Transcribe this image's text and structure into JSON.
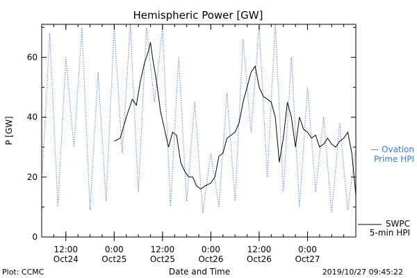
{
  "chart_data": {
    "type": "line",
    "title": "Hemispheric Power [GW]",
    "xlabel": "Date and Time",
    "ylabel": "P [GW]",
    "y_ticks": [
      0,
      20,
      40,
      60
    ],
    "ylim": [
      0,
      71
    ],
    "x_ticks": [
      {
        "time": "12:00",
        "date": "Oct24"
      },
      {
        "time": "0:00",
        "date": "Oct25"
      },
      {
        "time": "12:00",
        "date": "Oct25"
      },
      {
        "time": "0:00",
        "date": "Oct26"
      },
      {
        "time": "12:00",
        "date": "Oct26"
      },
      {
        "time": "0:00",
        "date": "Oct27"
      }
    ],
    "xlim": [
      "2019-10-24T06:00",
      "2019-10-27T12:00"
    ],
    "grid": false,
    "legend_placement": "right",
    "series": [
      {
        "name": "Ovation Prime HPI",
        "legend_lines": [
          "— Ovation",
          "Prime HPI"
        ],
        "color": "#3a7bd5",
        "style": "dotted",
        "x": [
          "2019-10-24T06:00",
          "2019-10-24T08:00",
          "2019-10-24T10:00",
          "2019-10-24T12:00",
          "2019-10-24T14:00",
          "2019-10-24T16:00",
          "2019-10-24T18:00",
          "2019-10-24T20:00",
          "2019-10-24T22:00",
          "2019-10-25T00:00",
          "2019-10-25T02:00",
          "2019-10-25T04:00",
          "2019-10-25T06:00",
          "2019-10-25T08:00",
          "2019-10-25T10:00",
          "2019-10-25T12:00",
          "2019-10-25T14:00",
          "2019-10-25T16:00",
          "2019-10-25T18:00",
          "2019-10-25T20:00",
          "2019-10-25T22:00",
          "2019-10-26T00:00",
          "2019-10-26T02:00",
          "2019-10-26T04:00",
          "2019-10-26T06:00",
          "2019-10-26T08:00",
          "2019-10-26T10:00",
          "2019-10-26T12:00",
          "2019-10-26T14:00",
          "2019-10-26T16:00",
          "2019-10-26T18:00",
          "2019-10-26T20:00",
          "2019-10-26T22:00",
          "2019-10-27T00:00",
          "2019-10-27T02:00",
          "2019-10-27T04:00",
          "2019-10-27T06:00",
          "2019-10-27T08:00",
          "2019-10-27T10:00",
          "2019-10-27T12:00"
        ],
        "values": [
          18,
          68,
          10,
          60,
          30,
          70,
          9,
          55,
          12,
          70,
          28,
          71,
          15,
          70,
          45,
          70,
          10,
          60,
          12,
          45,
          8,
          28,
          10,
          48,
          12,
          66,
          35,
          71,
          20,
          71,
          15,
          60,
          10,
          50,
          15,
          40,
          8,
          38,
          9,
          30
        ]
      },
      {
        "name": "SWPC 5-min HPI",
        "legend_lines": [
          "SWPC",
          "5-min HPI"
        ],
        "color": "#000000",
        "style": "solid",
        "x": [
          "2019-10-24T06:00",
          "2019-10-24T12:00",
          "2019-10-24T18:00",
          "2019-10-25T00:00",
          "2019-10-25T06:00",
          "2019-10-25T12:00",
          "2019-10-25T18:00",
          "2019-10-26T00:00",
          "2019-10-26T06:00",
          "2019-10-26T12:00",
          "2019-10-26T18:00",
          "2019-10-27T00:00",
          "2019-10-27T06:00",
          "2019-10-27T12:00"
        ],
        "values": [
          0,
          0,
          0,
          0,
          0,
          0,
          0,
          0,
          0,
          0,
          0,
          0,
          0,
          0
        ]
      },
      {
        "name": "",
        "color": "#000000",
        "style": "solid",
        "x": [
          "2019-10-25T00:00",
          "2019-10-25T01:30",
          "2019-10-25T03:00",
          "2019-10-25T04:30",
          "2019-10-25T05:30",
          "2019-10-25T06:30",
          "2019-10-25T07:30",
          "2019-10-25T08:30",
          "2019-10-25T09:00",
          "2019-10-25T09:30",
          "2019-10-25T10:30",
          "2019-10-25T11:30",
          "2019-10-25T12:30",
          "2019-10-25T13:30",
          "2019-10-25T14:30",
          "2019-10-25T15:30",
          "2019-10-25T16:30",
          "2019-10-25T17:30",
          "2019-10-25T18:30",
          "2019-10-25T19:30",
          "2019-10-25T20:30",
          "2019-10-25T21:30",
          "2019-10-25T22:30",
          "2019-10-26T00:00",
          "2019-10-26T01:00",
          "2019-10-26T02:00",
          "2019-10-26T03:00",
          "2019-10-26T04:00",
          "2019-10-26T05:00",
          "2019-10-26T06:00",
          "2019-10-26T07:00",
          "2019-10-26T08:00",
          "2019-10-26T09:00",
          "2019-10-26T10:00",
          "2019-10-26T11:00",
          "2019-10-26T12:00",
          "2019-10-26T13:00",
          "2019-10-26T14:00",
          "2019-10-26T15:00",
          "2019-10-26T16:00",
          "2019-10-26T17:00",
          "2019-10-26T18:00",
          "2019-10-26T19:00",
          "2019-10-26T20:00",
          "2019-10-26T21:00",
          "2019-10-26T22:00",
          "2019-10-26T23:00",
          "2019-10-27T00:00",
          "2019-10-27T01:00",
          "2019-10-27T02:00",
          "2019-10-27T03:00",
          "2019-10-27T04:00",
          "2019-10-27T05:00",
          "2019-10-27T06:00",
          "2019-10-27T07:00",
          "2019-10-27T08:00",
          "2019-10-27T09:00",
          "2019-10-27T10:00",
          "2019-10-27T11:00",
          "2019-10-27T12:00"
        ],
        "values": [
          32,
          33,
          40,
          46,
          44,
          52,
          58,
          62,
          65,
          60,
          52,
          42,
          36,
          30,
          35,
          34,
          25,
          22,
          20,
          20,
          17,
          16,
          17,
          18,
          20,
          27,
          28,
          33,
          34,
          35,
          38,
          45,
          50,
          55,
          57,
          50,
          47,
          46,
          45,
          40,
          25,
          33,
          45,
          40,
          30,
          40,
          36,
          35,
          33,
          34,
          30,
          31,
          33,
          31,
          30,
          32,
          33,
          35,
          28,
          14
        ]
      }
    ],
    "footer": {
      "left": "Plot: CCMC",
      "right": "2019/10/27 09:45:22"
    }
  }
}
